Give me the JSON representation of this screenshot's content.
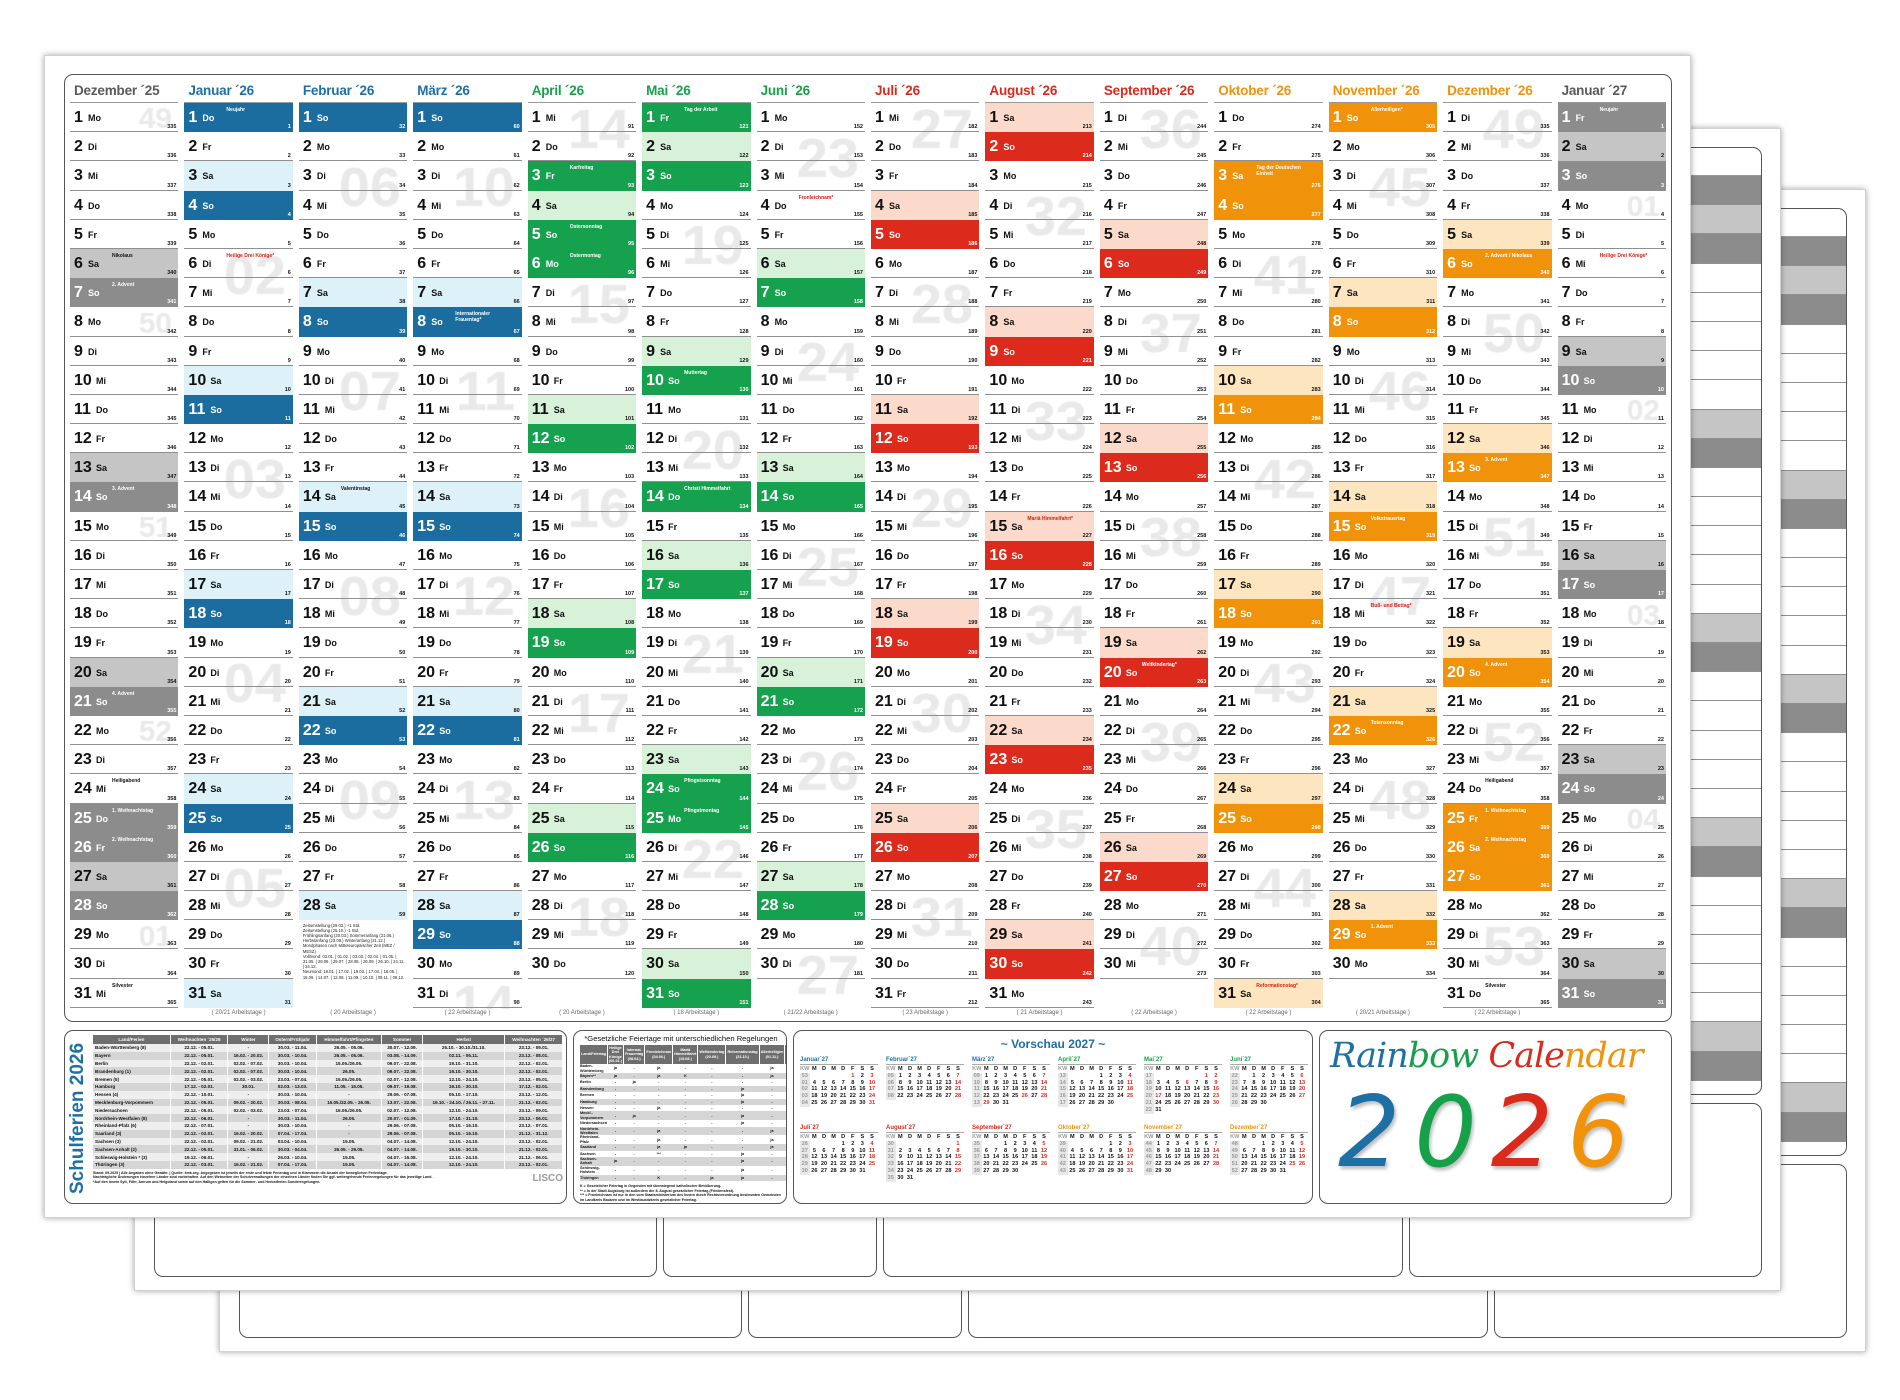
{
  "weekdays": [
    "So",
    "Mo",
    "Di",
    "Mi",
    "Do",
    "Fr",
    "Sa"
  ],
  "themes": {
    "gray": {
      "head": "#5a5a5a",
      "dark": "#8c8c8c",
      "light": "#c5c5c5"
    },
    "blue": {
      "head": "#1e6fa3",
      "dark": "#1a6d9e",
      "light": "#dcf1f8"
    },
    "green": {
      "head": "#17a04a",
      "dark": "#16a14e",
      "light": "#d8f2da"
    },
    "red": {
      "head": "#d92a1c",
      "dark": "#dc2a1c",
      "light": "#fbd9cb"
    },
    "orange": {
      "head": "#f0920a",
      "dark": "#f0920a",
      "light": "#fde6bf"
    }
  },
  "months": [
    {
      "title": "Dezember ´25",
      "year": 2025,
      "month": 12,
      "theme": "gray",
      "footer": "",
      "events": [
        {
          "day": 6,
          "label": "Nikolaus",
          "kind": "note"
        },
        {
          "day": 7,
          "label": "2. Advent",
          "kind": "note"
        },
        {
          "day": 14,
          "label": "3. Advent",
          "kind": "note"
        },
        {
          "day": 21,
          "label": "4. Advent",
          "kind": "note"
        },
        {
          "day": 24,
          "label": "Heiligabend",
          "kind": "note"
        },
        {
          "day": 25,
          "label": "1. Weihnachtstag",
          "kind": "holiday"
        },
        {
          "day": 26,
          "label": "2. Weihnachtstag",
          "kind": "holiday"
        },
        {
          "day": 31,
          "label": "Silvester",
          "kind": "note"
        }
      ]
    },
    {
      "title": "Januar ´26",
      "year": 2026,
      "month": 1,
      "theme": "blue",
      "footer": "( 20/21 Arbeitstage )",
      "events": [
        {
          "day": 1,
          "label": "Neujahr",
          "kind": "holiday"
        },
        {
          "day": 6,
          "label": "Heilige Drei Könige*",
          "kind": "regional"
        }
      ]
    },
    {
      "title": "Februar ´26",
      "year": 2026,
      "month": 2,
      "theme": "blue",
      "footer": "( 20 Arbeitstage )",
      "events": [
        {
          "day": 14,
          "label": "Valentinstag",
          "kind": "note"
        }
      ]
    },
    {
      "title": "März ´26",
      "year": 2026,
      "month": 3,
      "theme": "blue",
      "footer": "( 22 Arbeitstage )",
      "events": [
        {
          "day": 8,
          "label": "Internationaler Frauentag*",
          "kind": "regional"
        }
      ]
    },
    {
      "title": "April ´26",
      "year": 2026,
      "month": 4,
      "theme": "green",
      "footer": "( 20 Arbeitstage )",
      "events": [
        {
          "day": 3,
          "label": "Karfreitag",
          "kind": "holiday"
        },
        {
          "day": 5,
          "label": "Ostersonntag",
          "kind": "holiday"
        },
        {
          "day": 6,
          "label": "Ostermontag",
          "kind": "holiday"
        }
      ]
    },
    {
      "title": "Mai ´26",
      "year": 2026,
      "month": 5,
      "theme": "green",
      "footer": "( 18 Arbeitstage )",
      "events": [
        {
          "day": 1,
          "label": "Tag der Arbeit",
          "kind": "holiday"
        },
        {
          "day": 10,
          "label": "Muttertag",
          "kind": "note"
        },
        {
          "day": 14,
          "label": "Christi Himmelfahrt",
          "kind": "holiday"
        },
        {
          "day": 24,
          "label": "Pfingstsonntag",
          "kind": "holiday"
        },
        {
          "day": 25,
          "label": "Pfingstmontag",
          "kind": "holiday"
        }
      ]
    },
    {
      "title": "Juni ´26",
      "year": 2026,
      "month": 6,
      "theme": "green",
      "footer": "( 21/22 Arbeitstage )",
      "events": [
        {
          "day": 4,
          "label": "Fronleichnam*",
          "kind": "regional"
        }
      ]
    },
    {
      "title": "Juli ´26",
      "year": 2026,
      "month": 7,
      "theme": "red",
      "footer": "( 23 Arbeitstage )",
      "events": []
    },
    {
      "title": "August ´26",
      "year": 2026,
      "month": 8,
      "theme": "red",
      "footer": "( 21 Arbeitstage )",
      "events": [
        {
          "day": 15,
          "label": "Mariä Himmelfahrt*",
          "kind": "regional"
        }
      ]
    },
    {
      "title": "September ´26",
      "year": 2026,
      "month": 9,
      "theme": "red",
      "footer": "( 22 Arbeitstage )",
      "events": [
        {
          "day": 20,
          "label": "Weltkindertag*",
          "kind": "regional"
        }
      ]
    },
    {
      "title": "Oktober ´26",
      "year": 2026,
      "month": 10,
      "theme": "orange",
      "footer": "( 22 Arbeitstage )",
      "events": [
        {
          "day": 3,
          "label": "Tag der Deutschen Einheit",
          "kind": "holiday"
        },
        {
          "day": 31,
          "label": "Reformationstag*",
          "kind": "regional"
        }
      ]
    },
    {
      "title": "November ´26",
      "year": 2026,
      "month": 11,
      "theme": "orange",
      "footer": "( 20/21 Arbeitstage )",
      "events": [
        {
          "day": 1,
          "label": "Allerheiligen*",
          "kind": "regional"
        },
        {
          "day": 15,
          "label": "Volkstrauertag",
          "kind": "note"
        },
        {
          "day": 18,
          "label": "Buß- und Bettag*",
          "kind": "regional"
        },
        {
          "day": 22,
          "label": "Totensonntag",
          "kind": "note"
        },
        {
          "day": 29,
          "label": "1. Advent",
          "kind": "note"
        }
      ]
    },
    {
      "title": "Dezember ´26",
      "year": 2026,
      "month": 12,
      "theme": "orange",
      "footer": "( 22 Arbeitstage )",
      "events": [
        {
          "day": 6,
          "label": "2. Advent / Nikolaus",
          "kind": "note"
        },
        {
          "day": 13,
          "label": "3. Advent",
          "kind": "note"
        },
        {
          "day": 20,
          "label": "4. Advent",
          "kind": "note"
        },
        {
          "day": 24,
          "label": "Heiligabend",
          "kind": "note"
        },
        {
          "day": 25,
          "label": "1. Weihnachtstag",
          "kind": "holiday"
        },
        {
          "day": 26,
          "label": "2. Weihnachtstag",
          "kind": "holiday"
        },
        {
          "day": 31,
          "label": "Silvester",
          "kind": "note"
        }
      ]
    },
    {
      "title": "Januar ´27",
      "year": 2027,
      "month": 1,
      "theme": "gray",
      "footer": "",
      "events": [
        {
          "day": 1,
          "label": "Neujahr",
          "kind": "holiday"
        },
        {
          "day": 6,
          "label": "Heilige Drei Könige*",
          "kind": "regional"
        }
      ]
    }
  ],
  "feb_notes": [
    "Zeitumstellung (29.03.) +1 Std.",
    "Zeitumstellung (25.10.) -1 Std.",
    "Frühlingsanfang (20.03.)   Sommeranfang (21.06.)",
    "Herbstanfang (23.09.)   Winteranfang (21.12.)",
    "Mondphasen nach Mitteleuropäischer Zeit (MEZ / MESZ)",
    "Vollmond: 03.01. | 01.02. | 03.03. | 02.04. | 01.05. | 31.05. | 29.06. | 29.07. | 28.08. | 26.09. | 26.10. | 24.11. | 24.12.",
    "Neumond: 18.01. | 17.02. | 19.03. | 17.04. | 16.05. | 15.06. | 14.07. | 12.08. | 11.09. | 10.10. | 09.11. | 09.12."
  ],
  "schulferien": {
    "title": "Schulferien 2026",
    "headers": [
      "Land/Ferien",
      "Weihnachten ´25/26",
      "Winter",
      "Ostern/Frühjahr",
      "Himmelfahrt/Pfingsten",
      "Sommer",
      "Herbst",
      "Weihnachten ´26/27"
    ],
    "rows": [
      [
        "Baden-Württemberg (8)",
        "22.12. - 05.01.",
        "-",
        "30.03. - 11.04.",
        "26.05. - 05.06.",
        "30.07. - 12.09.",
        "26.10. - 30.10./31.10.",
        "23.12. - 09.01."
      ],
      [
        "Bayern",
        "22.12. - 05.01.",
        "16.02. - 20.02.",
        "30.03. - 10.04.",
        "26.05. - 05.06.",
        "03.08. - 14.09.",
        "02.11. - 06.11.",
        "23.12. - 08.01."
      ],
      [
        "Berlin",
        "22.12. - 02.01.",
        "02.02. - 07.02.",
        "30.03. - 10.04.",
        "15.05./26.05.",
        "09.07. - 22.08.",
        "19.10. - 31.10.",
        "22.12. - 02.01."
      ],
      [
        "Brandenburg (1)",
        "22.12. - 02.01.",
        "02.02. - 07.02.",
        "30.03. - 10.04.",
        "26.05.",
        "09.07. - 22.08.",
        "19.10. - 30.10.",
        "22.12. - 02.01."
      ],
      [
        "Bremen (5)",
        "22.12. - 05.01.",
        "02.02. - 03.02.",
        "23.03. - 07.04.",
        "15.05./26.05.",
        "02.07. - 12.08.",
        "12.10. - 24.10.",
        "23.12. - 05.01."
      ],
      [
        "Hamburg",
        "17.12. - 02.01.",
        "30.01.",
        "02.03. - 13.03.",
        "11.05. - 15.05.",
        "09.07. - 19.08.",
        "19.10. - 30.10.",
        "17.12. - 02.01."
      ],
      [
        "Hessen (4)",
        "22.12. - 10.01.",
        "-",
        "30.03. - 10.04.",
        "-",
        "29.06. - 07.08.",
        "05.10. - 17.10.",
        "23.12. - 12.01."
      ],
      [
        "Mecklenburg-Vorpommern",
        "22.12. - 05.01.",
        "09.02. - 20.02.",
        "30.03. - 08.04.",
        "15.05./22.05. - 26.05.",
        "13.07. - 22.08.",
        "19.10. - 24.10. / 26.11. - 27.11.",
        "21.12. - 02.01."
      ],
      [
        "Niedersachsen",
        "22.12. - 05.01.",
        "02.02. - 03.02.",
        "23.03. - 07.04.",
        "15.05./26.05.",
        "02.07. - 12.08.",
        "12.10. - 24.10.",
        "23.12. - 09.01."
      ],
      [
        "Nordrhein-Westfalen (8)",
        "22.12. - 06.01.",
        "-",
        "30.03. - 11.04.",
        "26.05.",
        "20.07. - 01.09.",
        "17.10. - 31.10.",
        "23.12. - 06.01."
      ],
      [
        "Rheinland-Pfalz (6)",
        "22.12. - 07.01.",
        "-",
        "30.03. - 10.04.",
        "-",
        "29.06. - 07.08.",
        "05.10. - 16.10.",
        "23.12. - 07.01."
      ],
      [
        "Saarland (3)",
        "22.12. - 02.01.",
        "16.02. - 20.02.",
        "07.04. - 17.04.",
        "-",
        "29.06. - 07.08.",
        "05.10. - 16.10.",
        "21.12. - 31.12."
      ],
      [
        "Sachsen (3)",
        "22.12. - 02.01.",
        "09.02. - 21.02.",
        "03.04. - 10.04.",
        "15.05.",
        "04.07. - 14.08.",
        "12.10. - 24.10.",
        "23.12. - 02.01."
      ],
      [
        "Sachsen-Anhalt (2)",
        "22.12. - 05.01.",
        "31.01. - 06.02.",
        "30.03. - 04.04.",
        "26.05. - 29.05.",
        "04.07. - 14.08.",
        "19.10. - 30.10.",
        "21.12. - 02.01."
      ],
      [
        "Schleswig-Holstein * (3)",
        "19.12. - 06.01.",
        "-",
        "26.03. - 10.04.",
        "15.05.",
        "04.07. - 15.08.",
        "12.10. - 24.10.",
        "21.12. - 06.01."
      ],
      [
        "Thüringen (3)",
        "22.12. - 03.01.",
        "16.02. - 21.02.",
        "07.04. - 17.04.",
        "15.05.",
        "04.07. - 14.08.",
        "12.10. - 24.10.",
        "23.12. - 02.01."
      ]
    ],
    "notes": [
      "Stand: 09.2025 | Alle Angaben ohne Gewähr. | Quelle: kmk.org. Angegeben ist jeweils der erste und letzte Ferientag und in Klammern die Anzahl der beweglichen Ferientage.",
      "Nachträgliche Änderungen einzelner Länder sind vorbehalten. Auf den Webseiten der Schulverwaltungen der einzelnen Länder finden Sie ggf. weitergehende Ferienregelungen für das jeweilige Land.",
      "*Auf den Inseln Sylt, Föhr, Amrum und Helgoland sowie auf den Halligen gelten für die Sommer- und Herbstferien Sonderregelungen."
    ],
    "brand": "LISCO"
  },
  "feiertage": {
    "title": "*Gesetzliche Feiertage mit unterschiedlichen Regelungen",
    "headers": [
      "Land/Feiertag",
      "Heilige Drei Könige (06.01.)",
      "Internat. Frauentag (08.03.)",
      "Fronleichnam (04.06.)",
      "Mariä Himmelfahrt (15.08.)",
      "Weltkindertag (20.09.)",
      "Reformationstag (31.10.)",
      "Allerheiligen (01.11.)",
      "Buß- und Bettag (18.11.)"
    ],
    "rows": [
      [
        "Baden-Württemberg",
        "ja",
        "-",
        "ja",
        "-",
        "-",
        "-",
        "ja",
        "-"
      ],
      [
        "Bayern**",
        "ja",
        "-",
        "ja",
        "K",
        "-",
        "-",
        "ja",
        "-"
      ],
      [
        "Berlin",
        "-",
        "ja",
        "-",
        "-",
        "-",
        "-",
        "-",
        "-"
      ],
      [
        "Brandenburg",
        "-",
        "-",
        "-",
        "-",
        "-",
        "ja",
        "-",
        "-"
      ],
      [
        "Bremen",
        "-",
        "-",
        "-",
        "-",
        "-",
        "ja",
        "-",
        "-"
      ],
      [
        "Hamburg",
        "-",
        "-",
        "-",
        "-",
        "-",
        "ja",
        "-",
        "-"
      ],
      [
        "Hessen",
        "-",
        "-",
        "ja",
        "-",
        "-",
        "-",
        "-",
        "-"
      ],
      [
        "Meckl.-Vorpommern",
        "-",
        "ja",
        "-",
        "-",
        "-",
        "ja",
        "-",
        "-"
      ],
      [
        "Niedersachsen",
        "-",
        "-",
        "-",
        "-",
        "-",
        "ja",
        "-",
        "-"
      ],
      [
        "Nordrhein-Westfalen",
        "-",
        "-",
        "ja",
        "-",
        "-",
        "-",
        "ja",
        "-"
      ],
      [
        "Rheinland-Pfalz",
        "-",
        "-",
        "ja",
        "-",
        "-",
        "-",
        "ja",
        "-"
      ],
      [
        "Saarland",
        "-",
        "-",
        "ja",
        "ja",
        "-",
        "-",
        "ja",
        "-"
      ],
      [
        "Sachsen",
        "-",
        "-",
        "***",
        "-",
        "-",
        "ja",
        "-",
        "ja"
      ],
      [
        "Sachsen-Anhalt",
        "ja",
        "-",
        "-",
        "-",
        "-",
        "ja",
        "-",
        "-"
      ],
      [
        "Schleswig-Holstein",
        "-",
        "-",
        "-",
        "-",
        "-",
        "ja",
        "-",
        "-"
      ],
      [
        "Thüringen",
        "-",
        "-",
        "K",
        "-",
        "ja",
        "ja",
        "-",
        "-"
      ]
    ],
    "notes": [
      "K = Gesetzlicher Feiertag in Gegenden mit überwiegend katholischer Bevölkerung.",
      "** = In der Stadt Augsburg ist außerdem der 8. August gesetzlicher Feiertag (Friedensfest).",
      "*** = Fronleichnam ist nur in den vom Staatsministerium des Innern durch Rechtsverordnung bestimmten Gemeinden im Landkreis Bautzen und im Westlausitzkreis gesetzlicher Feiertag."
    ]
  },
  "vorschau": {
    "title": "~ Vorschau 2027 ~",
    "year": 2027,
    "grid_header": [
      "KW",
      "M",
      "D",
      "M",
      "D",
      "F",
      "S",
      "S"
    ],
    "months": [
      {
        "title": "Januar´27",
        "theme": "blue"
      },
      {
        "title": "Februar´27",
        "theme": "blue"
      },
      {
        "title": "März´27",
        "theme": "blue"
      },
      {
        "title": "April´27",
        "theme": "green"
      },
      {
        "title": "Mai´27",
        "theme": "green"
      },
      {
        "title": "Juni´27",
        "theme": "green"
      },
      {
        "title": "Juli´27",
        "theme": "red"
      },
      {
        "title": "August´27",
        "theme": "red"
      },
      {
        "title": "September´27",
        "theme": "red"
      },
      {
        "title": "Oktober´27",
        "theme": "orange"
      },
      {
        "title": "November´27",
        "theme": "orange"
      },
      {
        "title": "Dezember´27",
        "theme": "orange"
      }
    ],
    "red_days": [
      "1-1",
      "3-26",
      "3-28",
      "3-29",
      "5-1",
      "5-6",
      "5-16",
      "5-17",
      "10-3",
      "12-25",
      "12-26"
    ]
  },
  "logo": {
    "line1": [
      {
        "t": "Rain",
        "c": "#1e6fa3"
      },
      {
        "t": "bow ",
        "c": "#17a04a"
      },
      {
        "t": "Cale",
        "c": "#d92a1c"
      },
      {
        "t": "ndar",
        "c": "#f0920a"
      }
    ],
    "year": [
      {
        "t": "2",
        "c": "#1e6fa3"
      },
      {
        "t": "0",
        "c": "#17a04a"
      },
      {
        "t": "2",
        "c": "#d92a1c"
      },
      {
        "t": "6",
        "c": "#f0920a"
      }
    ]
  }
}
